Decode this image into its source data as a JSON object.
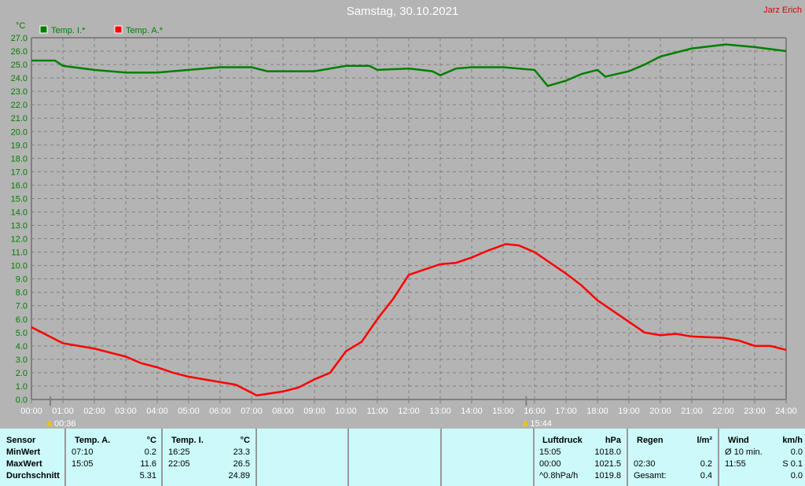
{
  "title": "Samstag, 30.10.2021",
  "author": "Jarz Erich",
  "colors": {
    "temp_i": "#008000",
    "temp_a": "#ff0000",
    "axis_text": "#008000",
    "background": "#b4b4b4",
    "table": "#ccfafa"
  },
  "chart_data": {
    "type": "line",
    "ylabel": "°C",
    "ylim": [
      0,
      27
    ],
    "yticks": [
      "0.0",
      "1.0",
      "2.0",
      "3.0",
      "4.0",
      "5.0",
      "6.0",
      "7.0",
      "8.0",
      "9.0",
      "10.0",
      "11.0",
      "12.0",
      "13.0",
      "14.0",
      "15.0",
      "16.0",
      "17.0",
      "18.0",
      "19.0",
      "20.0",
      "21.0",
      "22.0",
      "23.0",
      "24.0",
      "25.0",
      "26.0",
      "27.0"
    ],
    "xticks": [
      "00:00",
      "01:00",
      "02:00",
      "03:00",
      "04:00",
      "05:00",
      "06:00",
      "07:00",
      "08:00",
      "09:00",
      "10:00",
      "11:00",
      "12:00",
      "13:00",
      "14:00",
      "15:00",
      "16:00",
      "17:00",
      "18:00",
      "19:00",
      "20:00",
      "21:00",
      "22:00",
      "23:00",
      "24:00"
    ],
    "markers": [
      {
        "time": "00:36",
        "label": "00:36",
        "icon": "moonrise-icon"
      },
      {
        "time": "15:44",
        "label": "15:44",
        "icon": "moonset-icon"
      }
    ],
    "grid": true,
    "legend": "top-left",
    "series": [
      {
        "name": "Temp. I.*",
        "color": "#008000",
        "points": [
          [
            "00:00",
            25.3
          ],
          [
            "00:45",
            25.3
          ],
          [
            "01:00",
            24.9
          ],
          [
            "02:00",
            24.6
          ],
          [
            "03:00",
            24.4
          ],
          [
            "04:00",
            24.4
          ],
          [
            "05:00",
            24.6
          ],
          [
            "06:00",
            24.8
          ],
          [
            "07:00",
            24.8
          ],
          [
            "07:30",
            24.5
          ],
          [
            "08:00",
            24.5
          ],
          [
            "09:00",
            24.5
          ],
          [
            "10:00",
            24.9
          ],
          [
            "10:45",
            24.9
          ],
          [
            "11:00",
            24.6
          ],
          [
            "12:00",
            24.7
          ],
          [
            "12:45",
            24.5
          ],
          [
            "13:00",
            24.2
          ],
          [
            "13:30",
            24.7
          ],
          [
            "14:00",
            24.8
          ],
          [
            "15:00",
            24.8
          ],
          [
            "16:00",
            24.6
          ],
          [
            "16:25",
            23.4
          ],
          [
            "17:00",
            23.8
          ],
          [
            "17:30",
            24.3
          ],
          [
            "18:00",
            24.6
          ],
          [
            "18:15",
            24.1
          ],
          [
            "19:00",
            24.5
          ],
          [
            "19:30",
            25.0
          ],
          [
            "20:00",
            25.6
          ],
          [
            "21:00",
            26.2
          ],
          [
            "22:05",
            26.5
          ],
          [
            "23:00",
            26.3
          ],
          [
            "24:00",
            26.0
          ]
        ]
      },
      {
        "name": "Temp. A.*",
        "color": "#ff0000",
        "points": [
          [
            "00:00",
            5.4
          ],
          [
            "00:30",
            4.8
          ],
          [
            "01:00",
            4.2
          ],
          [
            "02:00",
            3.8
          ],
          [
            "03:00",
            3.2
          ],
          [
            "03:30",
            2.7
          ],
          [
            "04:00",
            2.4
          ],
          [
            "04:30",
            2.0
          ],
          [
            "05:00",
            1.7
          ],
          [
            "06:00",
            1.3
          ],
          [
            "06:30",
            1.1
          ],
          [
            "07:10",
            0.3
          ],
          [
            "08:00",
            0.6
          ],
          [
            "08:30",
            0.9
          ],
          [
            "09:00",
            1.5
          ],
          [
            "09:30",
            2.0
          ],
          [
            "10:00",
            3.6
          ],
          [
            "10:30",
            4.3
          ],
          [
            "11:00",
            6.0
          ],
          [
            "11:30",
            7.5
          ],
          [
            "12:00",
            9.3
          ],
          [
            "12:30",
            9.7
          ],
          [
            "13:00",
            10.1
          ],
          [
            "13:30",
            10.2
          ],
          [
            "14:00",
            10.6
          ],
          [
            "14:30",
            11.1
          ],
          [
            "15:05",
            11.6
          ],
          [
            "15:30",
            11.5
          ],
          [
            "16:00",
            11.0
          ],
          [
            "16:30",
            10.2
          ],
          [
            "17:00",
            9.4
          ],
          [
            "17:30",
            8.5
          ],
          [
            "18:00",
            7.4
          ],
          [
            "18:30",
            6.6
          ],
          [
            "19:00",
            5.8
          ],
          [
            "19:30",
            5.0
          ],
          [
            "20:00",
            4.8
          ],
          [
            "20:30",
            4.9
          ],
          [
            "21:00",
            4.7
          ],
          [
            "22:00",
            4.6
          ],
          [
            "22:30",
            4.4
          ],
          [
            "23:00",
            4.0
          ],
          [
            "23:30",
            4.0
          ],
          [
            "24:00",
            3.7
          ]
        ]
      }
    ]
  },
  "table": {
    "sensor": {
      "h": "Sensor",
      "rows": [
        "MinWert",
        "MaxWert",
        "Durchschnitt"
      ]
    },
    "temp_a": {
      "h": "Temp. A.",
      "u": "°C",
      "rows": [
        [
          "07:10",
          "0.2"
        ],
        [
          "15:05",
          "11.6"
        ],
        [
          "",
          "5.31"
        ]
      ]
    },
    "temp_i": {
      "h": "Temp. I.",
      "u": "°C",
      "rows": [
        [
          "16:25",
          "23.3"
        ],
        [
          "22:05",
          "26.5"
        ],
        [
          "",
          "24.89"
        ]
      ]
    },
    "luft": {
      "h": "Luftdruck",
      "u": "hPa",
      "rows": [
        [
          "15:05",
          "1018.0"
        ],
        [
          "00:00",
          "1021.5"
        ],
        [
          "^0.8hPa/h",
          "1019.8"
        ]
      ]
    },
    "regen": {
      "h": "Regen",
      "u": "l/m²",
      "rows": [
        [
          "",
          ""
        ],
        [
          "02:30",
          "0.2"
        ],
        [
          "Gesamt:",
          "0.4"
        ]
      ]
    },
    "wind": {
      "h": "Wind",
      "u": "km/h",
      "rows": [
        [
          "Ø 10 min.",
          "0.0"
        ],
        [
          "11:55",
          "S 0.1"
        ],
        [
          "",
          "0.0"
        ]
      ]
    }
  }
}
